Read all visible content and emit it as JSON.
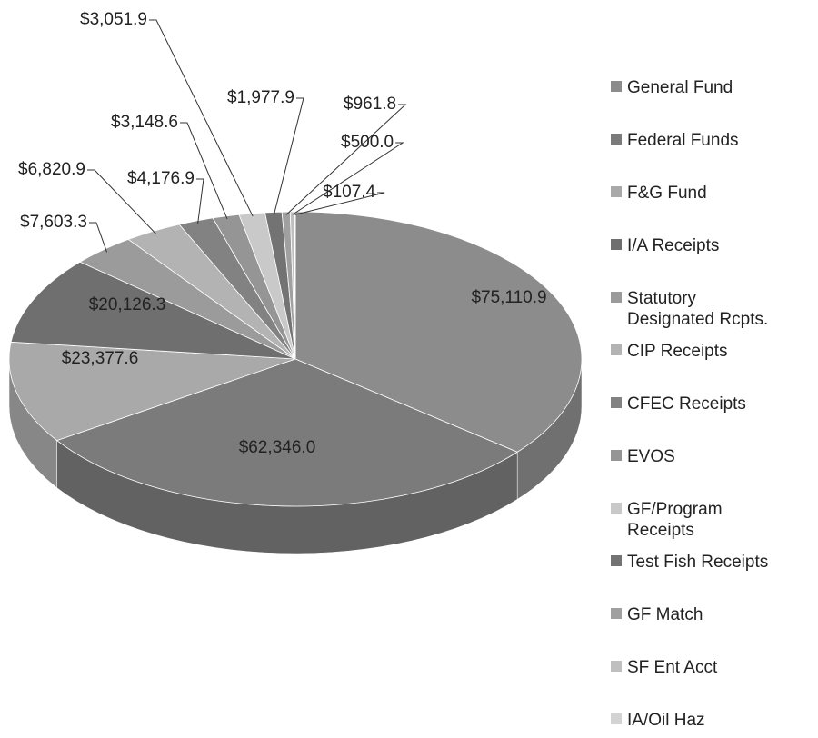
{
  "chart_data": {
    "type": "pie3d",
    "categories": [
      "General Fund",
      "Federal Funds",
      "F&G Fund",
      "I/A Receipts",
      "Statutory Designated Rcpts.",
      "CIP Receipts",
      "CFEC Receipts",
      "EVOS",
      "GF/Program Receipts",
      "Test Fish Receipts",
      "GF Match",
      "SF Ent Acct",
      "IA/Oil Haz"
    ],
    "values": [
      75110.9,
      62346.0,
      23377.6,
      20126.3,
      7603.3,
      6820.9,
      4176.9,
      3148.6,
      3051.9,
      1977.9,
      961.8,
      500.0,
      107.4
    ],
    "value_labels": [
      "$75,110.9",
      "$62,346.0",
      "$23,377.6",
      "$20,126.3",
      "$7,603.3",
      "$6,820.9",
      "$4,176.9",
      "$3,148.6",
      "$3,051.9",
      "$1,977.9",
      "$961.8",
      "$500.0",
      "$107.4"
    ],
    "colors": [
      "#8c8c8c",
      "#7b7b7b",
      "#a9a9a9",
      "#6f6f6f",
      "#9b9b9b",
      "#b3b3b3",
      "#828282",
      "#959595",
      "#c9c9c9",
      "#737373",
      "#a0a0a0",
      "#bfbfbf",
      "#d3d3d3"
    ],
    "legend": "right"
  }
}
